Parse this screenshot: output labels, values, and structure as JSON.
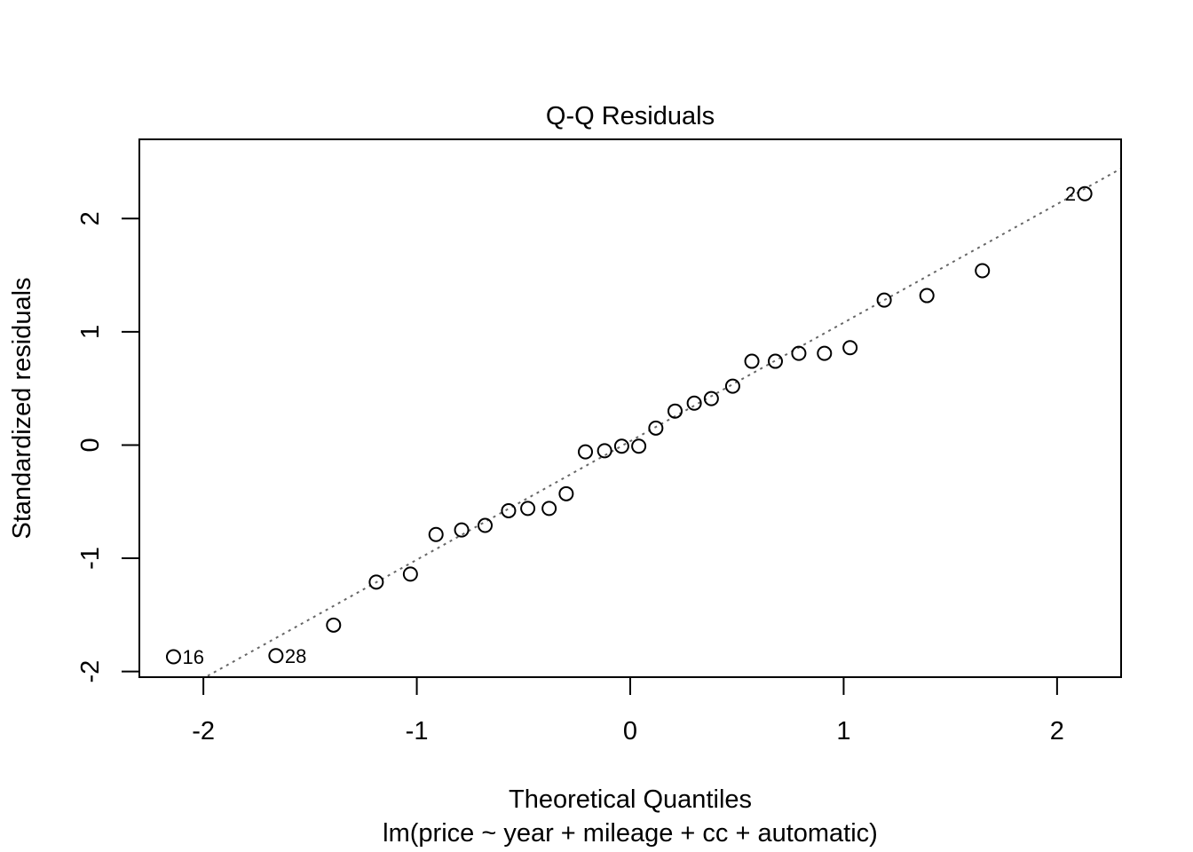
{
  "chart_data": {
    "type": "scatter",
    "title": "Q-Q Residuals",
    "xlabel": "Theoretical Quantiles",
    "subtitle": "lm(price ~ year + mileage + cc + automatic)",
    "ylabel": "Standardized residuals",
    "xlim": [
      -2.3,
      2.3
    ],
    "ylim": [
      -2.05,
      2.7
    ],
    "x_ticks": [
      -2,
      -1,
      0,
      1,
      2
    ],
    "x_tick_labels": [
      "-2",
      "-1",
      "0",
      "1",
      "2"
    ],
    "y_ticks": [
      -2,
      -1,
      0,
      1,
      2
    ],
    "y_tick_labels": [
      "-2",
      "-1",
      "0",
      "1",
      "2"
    ],
    "grid": false,
    "reference_line": {
      "style": "dotted",
      "color": "#666666",
      "slope": 1.047,
      "intercept": 0.034
    },
    "points": [
      {
        "x": -2.14,
        "y": -1.87,
        "label": "16"
      },
      {
        "x": -1.66,
        "y": -1.86,
        "label": "28"
      },
      {
        "x": -1.39,
        "y": -1.59
      },
      {
        "x": -1.19,
        "y": -1.21
      },
      {
        "x": -1.03,
        "y": -1.14
      },
      {
        "x": -0.91,
        "y": -0.79
      },
      {
        "x": -0.79,
        "y": -0.75
      },
      {
        "x": -0.68,
        "y": -0.71
      },
      {
        "x": -0.57,
        "y": -0.58
      },
      {
        "x": -0.48,
        "y": -0.56
      },
      {
        "x": -0.38,
        "y": -0.56
      },
      {
        "x": -0.3,
        "y": -0.43
      },
      {
        "x": -0.21,
        "y": -0.06
      },
      {
        "x": -0.12,
        "y": -0.05
      },
      {
        "x": -0.04,
        "y": -0.01
      },
      {
        "x": 0.04,
        "y": -0.01
      },
      {
        "x": 0.12,
        "y": 0.15
      },
      {
        "x": 0.21,
        "y": 0.3
      },
      {
        "x": 0.3,
        "y": 0.37
      },
      {
        "x": 0.38,
        "y": 0.41
      },
      {
        "x": 0.48,
        "y": 0.52
      },
      {
        "x": 0.57,
        "y": 0.74
      },
      {
        "x": 0.68,
        "y": 0.74
      },
      {
        "x": 0.79,
        "y": 0.81
      },
      {
        "x": 0.91,
        "y": 0.81
      },
      {
        "x": 1.03,
        "y": 0.86
      },
      {
        "x": 1.19,
        "y": 1.28
      },
      {
        "x": 1.39,
        "y": 1.32
      },
      {
        "x": 1.65,
        "y": 1.54
      },
      {
        "x": 2.13,
        "y": 2.22,
        "label": "2"
      }
    ]
  }
}
